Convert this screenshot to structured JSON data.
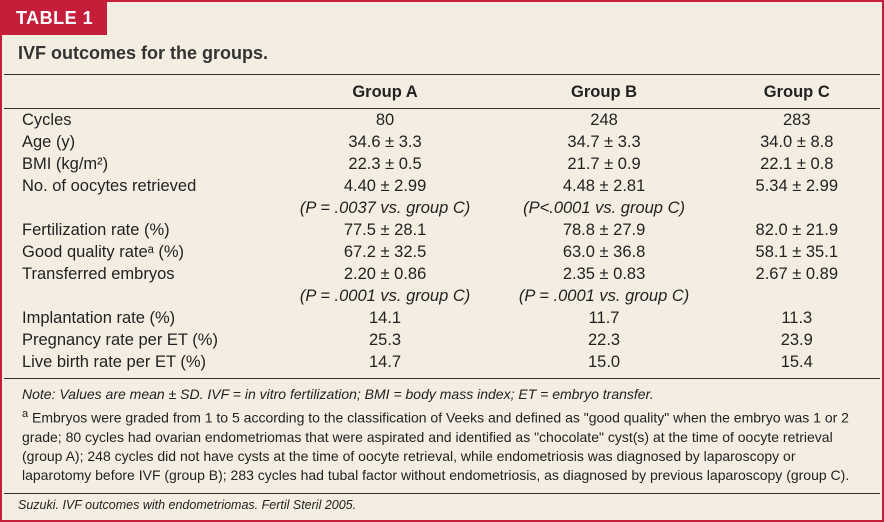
{
  "table": {
    "label": "TABLE 1",
    "title": "IVF outcomes for the groups.",
    "columns": [
      "",
      "Group A",
      "Group B",
      "Group C"
    ],
    "rows": [
      {
        "label": "Cycles",
        "a": "80",
        "b": "248",
        "c": "283"
      },
      {
        "label": "Age (y)",
        "a": "34.6 ± 3.3",
        "b": "34.7 ± 3.3",
        "c": "34.0 ± 8.8"
      },
      {
        "label": "BMI (kg/m²)",
        "a": "22.3 ± 0.5",
        "b": "21.7 ± 0.9",
        "c": "22.1 ± 0.8"
      },
      {
        "label": "No. of oocytes retrieved",
        "a": "4.40 ± 2.99",
        "b": "4.48 ± 2.81",
        "c": "5.34 ± 2.99"
      },
      {
        "label": "",
        "a": "(P = .0037 vs. group C)",
        "b": "(P<.0001 vs. group C)",
        "c": ""
      },
      {
        "label": "Fertilization rate (%)",
        "a": "77.5 ± 28.1",
        "b": "78.8 ± 27.9",
        "c": "82.0 ± 21.9"
      },
      {
        "label": "Good quality rateᵃ (%)",
        "a": "67.2 ± 32.5",
        "b": "63.0 ± 36.8",
        "c": "58.1 ± 35.1"
      },
      {
        "label": "Transferred embryos",
        "a": "2.20 ± 0.86",
        "b": "2.35 ± 0.83",
        "c": "2.67 ± 0.89"
      },
      {
        "label": "",
        "a": "(P = .0001 vs. group C)",
        "b": "(P = .0001 vs. group C)",
        "c": ""
      },
      {
        "label": "Implantation rate (%)",
        "a": "14.1",
        "b": "11.7",
        "c": "11.3"
      },
      {
        "label": "Pregnancy rate per ET (%)",
        "a": "25.3",
        "b": "22.3",
        "c": "23.9"
      },
      {
        "label": "Live birth rate per ET (%)",
        "a": "14.7",
        "b": "15.0",
        "c": "15.4"
      }
    ],
    "note_label": "Note:",
    "note": " Values are mean ± SD. IVF = in vitro fertilization; BMI = body mass index; ET = embryo transfer.",
    "footnote": "Embryos were graded from 1 to 5 according to the classification of Veeks and defined as \"good quality\" when the embryo was 1 or 2 grade; 80 cycles had ovarian endometriomas that were aspirated and identified as \"chocolate\" cyst(s) at the time of oocyte retrieval (group A); 248 cycles did not have cysts at the time of oocyte retrieval, while endometriosis was diagnosed by laparoscopy or laparotomy before IVF (group B); 283 cycles had tubal factor without endometriosis, as diagnosed by previous laparoscopy (group C).",
    "citation": "Suzuki. IVF outcomes with endometriomas. Fertil Steril 2005.",
    "colors": {
      "red": "#c41e3a",
      "bg": "#f4eee2",
      "text": "#222222",
      "rule": "#333333"
    }
  }
}
